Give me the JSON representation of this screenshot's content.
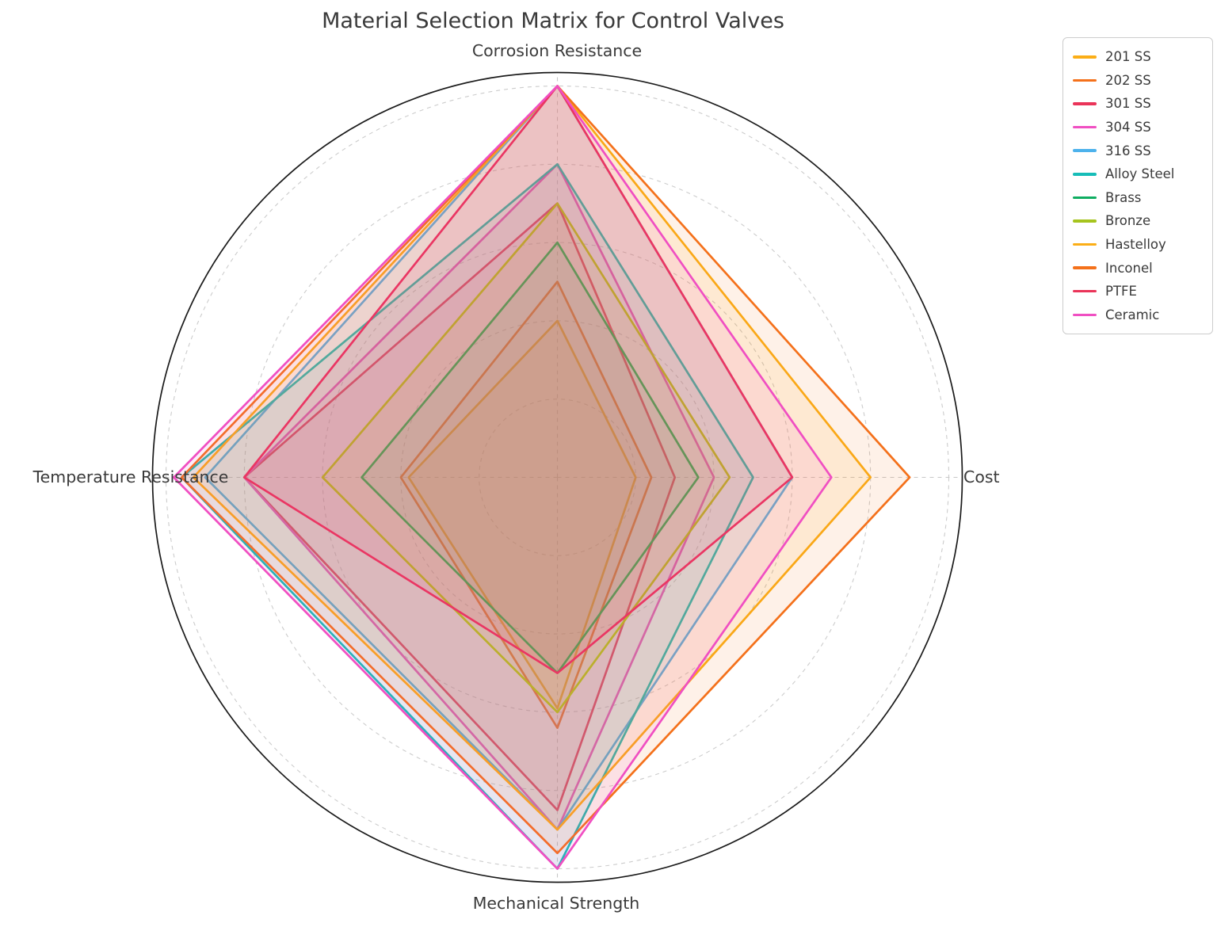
{
  "chart_data": {
    "type": "radar",
    "title": "Material Selection Matrix for Control Valves",
    "categories": [
      "Corrosion Resistance",
      "Cost",
      "Mechanical Strength",
      "Temperature Resistance"
    ],
    "axis_range": [
      0,
      10
    ],
    "grid_ticks": [
      2,
      4,
      6,
      8,
      10
    ],
    "grid_style": "dashed",
    "tick_labels_visible": false,
    "legend_position": "upper right",
    "colors": {
      "spine": "#1a1a1a",
      "grid": "#cccccc",
      "text": "#3a3a3a",
      "background": "#ffffff"
    },
    "fill_opacity": 0.1,
    "series": [
      {
        "name": "201 SS",
        "color": "#FBAE17",
        "values": [
          4.0,
          2.0,
          5.9,
          3.8
        ]
      },
      {
        "name": "202 SS",
        "color": "#F4711B",
        "values": [
          5.0,
          2.4,
          6.4,
          4.0
        ]
      },
      {
        "name": "301 SS",
        "color": "#EA3459",
        "values": [
          7.0,
          3.0,
          8.5,
          8.0
        ]
      },
      {
        "name": "304 SS",
        "color": "#F04FC2",
        "values": [
          8.0,
          4.0,
          9.0,
          8.0
        ]
      },
      {
        "name": "316 SS",
        "color": "#4DB2EC",
        "values": [
          10.0,
          6.0,
          9.0,
          9.0
        ]
      },
      {
        "name": "Alloy Steel",
        "color": "#17BDB8",
        "values": [
          8.0,
          5.0,
          10.0,
          9.6
        ]
      },
      {
        "name": "Brass",
        "color": "#0FAD61",
        "values": [
          6.0,
          3.6,
          5.0,
          5.0
        ]
      },
      {
        "name": "Bronze",
        "color": "#A6C41E",
        "values": [
          7.0,
          4.4,
          6.0,
          6.0
        ]
      },
      {
        "name": "Hastelloy",
        "color": "#FBAE17",
        "values": [
          10.0,
          8.0,
          9.0,
          9.3
        ]
      },
      {
        "name": "Inconel",
        "color": "#F4711B",
        "values": [
          10.0,
          9.0,
          9.6,
          9.6
        ]
      },
      {
        "name": "PTFE",
        "color": "#EA3459",
        "values": [
          10.0,
          6.0,
          5.0,
          8.0
        ]
      },
      {
        "name": "Ceramic",
        "color": "#F04FC2",
        "values": [
          10.0,
          7.0,
          10.0,
          9.8
        ]
      }
    ]
  }
}
